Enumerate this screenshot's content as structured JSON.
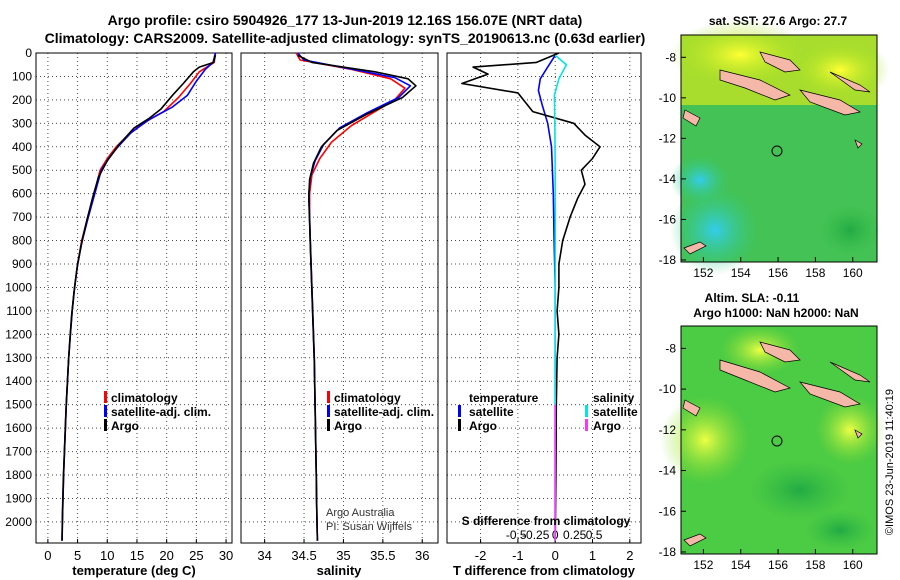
{
  "header": {
    "title_line1": "Argo profile: csiro 5904926_177 13-Jun-2019 12.16S 156.07E (NRT data)",
    "title_line2": "Climatology: CARS2009. Satellite-adjusted climatology: synTS_20190613.nc (0.63d earlier)"
  },
  "credits": {
    "line1": "Argo Australia",
    "line2": "PI: Susan Wijffels",
    "imos": "©IMOS 23-Jun-2019 11:40:19"
  },
  "colors": {
    "climatology": "#ff0000",
    "satellite": "#0000ff",
    "argo": "#000000",
    "salinity_satellite": "#00e5e5",
    "salinity_argo": "#ff33ff"
  },
  "chart_data": [
    {
      "type": "line",
      "id": "temperature",
      "xlabel": "temperature (deg C)",
      "ylabel": "",
      "xlim": [
        -2,
        31
      ],
      "ylim": [
        2090,
        0
      ],
      "xticks": [
        0,
        5,
        10,
        15,
        20,
        25,
        30
      ],
      "yticks": [
        0,
        100,
        200,
        300,
        400,
        500,
        600,
        700,
        800,
        900,
        1000,
        1100,
        1200,
        1300,
        1400,
        1500,
        1600,
        1700,
        1800,
        1900,
        2000
      ],
      "legend": [
        "climatology",
        "satellite-adj. clim.",
        "Argo"
      ],
      "series": [
        {
          "name": "climatology",
          "color": "#ff0000",
          "points": [
            [
              28.2,
              0
            ],
            [
              28.0,
              40
            ],
            [
              25.5,
              80
            ],
            [
              24.0,
              130
            ],
            [
              22.0,
              190
            ],
            [
              19.5,
              250
            ],
            [
              16.0,
              300
            ],
            [
              13.5,
              350
            ],
            [
              11.5,
              400
            ],
            [
              10.0,
              450
            ],
            [
              8.8,
              500
            ],
            [
              7.8,
              600
            ],
            [
              6.7,
              700
            ],
            [
              5.7,
              800
            ],
            [
              5.0,
              900
            ],
            [
              4.5,
              1000
            ],
            [
              4.1,
              1100
            ],
            [
              3.8,
              1200
            ],
            [
              3.5,
              1300
            ],
            [
              3.3,
              1400
            ],
            [
              3.1,
              1500
            ],
            [
              2.95,
              1600
            ],
            [
              2.8,
              1700
            ],
            [
              2.65,
              1800
            ],
            [
              2.55,
              1900
            ],
            [
              2.45,
              2000
            ],
            [
              2.4,
              2080
            ]
          ]
        },
        {
          "name": "satellite-adj. clim.",
          "color": "#0000ff",
          "points": [
            [
              28.2,
              0
            ],
            [
              27.8,
              40
            ],
            [
              26.5,
              70
            ],
            [
              25.0,
              120
            ],
            [
              23.5,
              180
            ],
            [
              21.0,
              230
            ],
            [
              17.0,
              285
            ],
            [
              14.0,
              340
            ],
            [
              11.8,
              400
            ],
            [
              10.2,
              450
            ],
            [
              9.0,
              500
            ],
            [
              7.9,
              600
            ],
            [
              6.8,
              700
            ],
            [
              5.8,
              800
            ],
            [
              5.0,
              900
            ],
            [
              4.5,
              1000
            ],
            [
              4.1,
              1100
            ],
            [
              3.8,
              1200
            ],
            [
              3.5,
              1300
            ],
            [
              3.3,
              1400
            ],
            [
              3.1,
              1500
            ],
            [
              2.95,
              1600
            ],
            [
              2.8,
              1700
            ],
            [
              2.65,
              1800
            ],
            [
              2.55,
              1900
            ],
            [
              2.45,
              2000
            ],
            [
              2.4,
              2080
            ]
          ]
        },
        {
          "name": "Argo",
          "color": "#000000",
          "points": [
            [
              28.2,
              10
            ],
            [
              27.9,
              40
            ],
            [
              25.5,
              60
            ],
            [
              24.5,
              80
            ],
            [
              22.8,
              130
            ],
            [
              21.0,
              180
            ],
            [
              19.0,
              240
            ],
            [
              17.0,
              280
            ],
            [
              14.5,
              320
            ],
            [
              12.0,
              390
            ],
            [
              10.0,
              460
            ],
            [
              8.5,
              530
            ],
            [
              7.5,
              620
            ],
            [
              6.5,
              720
            ],
            [
              5.6,
              820
            ],
            [
              4.9,
              920
            ],
            [
              4.4,
              1020
            ],
            [
              4.0,
              1120
            ],
            [
              3.7,
              1220
            ],
            [
              3.45,
              1320
            ],
            [
              3.25,
              1420
            ],
            [
              3.05,
              1520
            ],
            [
              2.9,
              1620
            ],
            [
              2.75,
              1720
            ],
            [
              2.6,
              1820
            ],
            [
              2.5,
              1920
            ],
            [
              2.42,
              2000
            ],
            [
              2.38,
              2080
            ]
          ]
        }
      ]
    },
    {
      "type": "line",
      "id": "salinity",
      "xlabel": "salinity",
      "ylabel": "",
      "xlim": [
        33.7,
        36.2
      ],
      "ylim": [
        2090,
        0
      ],
      "xticks": [
        34,
        34.5,
        35,
        35.5,
        36
      ],
      "legend": [
        "climatology",
        "satellite-adj. clim.",
        "Argo"
      ],
      "series": [
        {
          "name": "climatology",
          "color": "#ff0000",
          "points": [
            [
              34.4,
              0
            ],
            [
              34.45,
              30
            ],
            [
              35.1,
              70
            ],
            [
              35.6,
              110
            ],
            [
              35.78,
              150
            ],
            [
              35.65,
              200
            ],
            [
              35.4,
              250
            ],
            [
              35.1,
              310
            ],
            [
              34.85,
              380
            ],
            [
              34.7,
              450
            ],
            [
              34.6,
              520
            ],
            [
              34.57,
              600
            ],
            [
              34.57,
              700
            ],
            [
              34.58,
              800
            ],
            [
              34.59,
              900
            ],
            [
              34.6,
              1000
            ],
            [
              34.61,
              1100
            ],
            [
              34.62,
              1200
            ],
            [
              34.63,
              1300
            ],
            [
              34.635,
              1400
            ],
            [
              34.64,
              1500
            ],
            [
              34.645,
              1600
            ],
            [
              34.65,
              1700
            ],
            [
              34.655,
              1800
            ],
            [
              34.66,
              1900
            ],
            [
              34.665,
              2000
            ],
            [
              34.67,
              2080
            ]
          ]
        },
        {
          "name": "satellite-adj. clim.",
          "color": "#0000ff",
          "points": [
            [
              34.42,
              0
            ],
            [
              34.5,
              30
            ],
            [
              35.2,
              75
            ],
            [
              35.65,
              105
            ],
            [
              35.85,
              140
            ],
            [
              35.7,
              190
            ],
            [
              35.3,
              255
            ],
            [
              34.95,
              320
            ],
            [
              34.75,
              390
            ],
            [
              34.64,
              460
            ],
            [
              34.58,
              530
            ],
            [
              34.56,
              600
            ],
            [
              34.57,
              700
            ],
            [
              34.58,
              800
            ],
            [
              34.59,
              900
            ],
            [
              34.6,
              1000
            ],
            [
              34.61,
              1100
            ],
            [
              34.62,
              1200
            ],
            [
              34.63,
              1300
            ],
            [
              34.635,
              1400
            ],
            [
              34.64,
              1500
            ],
            [
              34.645,
              1600
            ],
            [
              34.65,
              1700
            ],
            [
              34.655,
              1800
            ],
            [
              34.66,
              1900
            ],
            [
              34.665,
              2000
            ],
            [
              34.67,
              2080
            ]
          ]
        },
        {
          "name": "Argo",
          "color": "#000000",
          "points": [
            [
              34.42,
              10
            ],
            [
              34.6,
              40
            ],
            [
              35.4,
              80
            ],
            [
              35.82,
              110
            ],
            [
              35.92,
              140
            ],
            [
              35.75,
              190
            ],
            [
              35.3,
              260
            ],
            [
              34.92,
              330
            ],
            [
              34.72,
              400
            ],
            [
              34.62,
              470
            ],
            [
              34.57,
              540
            ],
            [
              34.56,
              620
            ],
            [
              34.57,
              720
            ],
            [
              34.58,
              820
            ],
            [
              34.59,
              920
            ],
            [
              34.6,
              1020
            ],
            [
              34.61,
              1120
            ],
            [
              34.62,
              1220
            ],
            [
              34.63,
              1320
            ],
            [
              34.635,
              1420
            ],
            [
              34.64,
              1520
            ],
            [
              34.645,
              1620
            ],
            [
              34.65,
              1720
            ],
            [
              34.655,
              1820
            ],
            [
              34.66,
              1920
            ],
            [
              34.665,
              2000
            ],
            [
              34.67,
              2080
            ]
          ]
        }
      ]
    },
    {
      "type": "line",
      "id": "difference",
      "title_top": "S difference from climatology",
      "xlabel": "T difference from climatology",
      "ylabel": "",
      "xlim": [
        -2.9,
        2.3
      ],
      "ylim": [
        2090,
        0
      ],
      "xticks": [
        -2,
        -1,
        0,
        1,
        2
      ],
      "s_ticks": [
        -0.5,
        -0.25,
        0,
        0.25,
        0.5
      ],
      "s_tick_labels": [
        "-0.5",
        "-0.25",
        "0",
        "0.25",
        "0.5"
      ],
      "legend_temperature_title": "temperature",
      "legend_salinity_title": "salinity",
      "legend": [
        "satellite",
        "Argo",
        "satellite",
        "Argo"
      ],
      "series": [
        {
          "name": "temperature satellite",
          "color": "#0000ff",
          "points": [
            [
              0,
              10
            ],
            [
              -0.2,
              60
            ],
            [
              -0.4,
              110
            ],
            [
              -0.45,
              160
            ],
            [
              -0.35,
              220
            ],
            [
              -0.2,
              300
            ],
            [
              -0.1,
              400
            ],
            [
              -0.05,
              600
            ],
            [
              -0.03,
              800
            ],
            [
              0,
              1000
            ],
            [
              0,
              2080
            ]
          ]
        },
        {
          "name": "temperature Argo",
          "color": "#000000",
          "points": [
            [
              0.1,
              0
            ],
            [
              -0.5,
              40
            ],
            [
              -2.2,
              60
            ],
            [
              -1.8,
              90
            ],
            [
              -2.5,
              130
            ],
            [
              -1.0,
              170
            ],
            [
              -0.6,
              250
            ],
            [
              0.5,
              300
            ],
            [
              0.8,
              350
            ],
            [
              1.2,
              400
            ],
            [
              1.0,
              450
            ],
            [
              0.7,
              500
            ],
            [
              0.8,
              560
            ],
            [
              0.6,
              620
            ],
            [
              0.4,
              700
            ],
            [
              0.2,
              800
            ],
            [
              0.1,
              900
            ],
            [
              0.1,
              1000
            ],
            [
              0.05,
              1100
            ],
            [
              0.1,
              1200
            ],
            [
              0.05,
              1300
            ],
            [
              0.03,
              1500
            ],
            [
              0.02,
              1800
            ],
            [
              0,
              2080
            ]
          ]
        },
        {
          "name": "salinity satellite",
          "color": "#00e5e5",
          "points": [
            [
              0,
              10
            ],
            [
              0.3,
              50
            ],
            [
              0.1,
              110
            ],
            [
              -0.02,
              180
            ],
            [
              -0.01,
              300
            ],
            [
              0,
              500
            ],
            [
              0,
              800
            ],
            [
              0,
              1100
            ],
            [
              0,
              1500
            ],
            [
              0,
              2080
            ]
          ]
        },
        {
          "name": "salinity Argo",
          "color": "#ff33ff",
          "points": [
            [
              0,
              1500
            ],
            [
              0,
              2080
            ]
          ]
        }
      ]
    },
    {
      "type": "heatmap",
      "id": "sst_map",
      "title": "sat. SST: 27.6 Argo: 27.7",
      "xticks": [
        152,
        154,
        156,
        158,
        160
      ],
      "yticks": [
        -8,
        -10,
        -12,
        -14,
        -16,
        -18
      ],
      "xlim": [
        150.8,
        161.3
      ],
      "ylim": [
        -18.1,
        -6.9
      ],
      "marker_lon": 156.07,
      "marker_lat": -12.16
    },
    {
      "type": "heatmap",
      "id": "sla_map",
      "title": "Altim. SLA: -0.11",
      "subtitle": "Argo h1000: NaN h2000: NaN",
      "xticks": [
        152,
        154,
        156,
        158,
        160
      ],
      "yticks": [
        -8,
        -10,
        -12,
        -14,
        -16,
        -18
      ],
      "xlim": [
        150.8,
        161.3
      ],
      "ylim": [
        -18.1,
        -6.9
      ],
      "marker_lon": 156.07,
      "marker_lat": -12.16
    }
  ]
}
